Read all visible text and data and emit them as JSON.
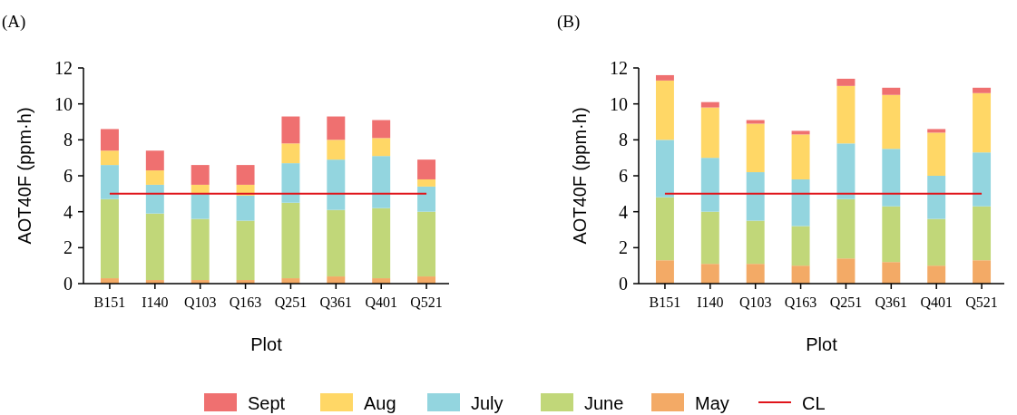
{
  "chart_data": [
    {
      "type": "bar",
      "title": "(A)",
      "xlabel": "Plot",
      "ylabel": "AOT40F (ppm·h)",
      "stacked": true,
      "legend": "bottom",
      "categories": [
        "B151",
        "I140",
        "Q103",
        "Q163",
        "Q251",
        "Q361",
        "Q401",
        "Q521"
      ],
      "ylim": [
        0,
        12
      ],
      "yticks": [
        0,
        2,
        4,
        6,
        8,
        10,
        12
      ],
      "series": [
        {
          "name": "May",
          "color": "#f3aa66",
          "values": [
            0.3,
            0.2,
            0.2,
            0.2,
            0.3,
            0.4,
            0.3,
            0.4
          ]
        },
        {
          "name": "June",
          "color": "#c1d779",
          "values": [
            4.4,
            3.7,
            3.4,
            3.3,
            4.2,
            3.7,
            3.9,
            3.6
          ]
        },
        {
          "name": "July",
          "color": "#93d5df",
          "values": [
            1.9,
            1.6,
            1.4,
            1.4,
            2.2,
            2.8,
            2.9,
            1.4
          ]
        },
        {
          "name": "Aug",
          "color": "#ffd766",
          "values": [
            0.8,
            0.8,
            0.5,
            0.6,
            1.1,
            1.1,
            1.0,
            0.4
          ]
        },
        {
          "name": "Sept",
          "color": "#ef7070",
          "values": [
            1.2,
            1.1,
            1.1,
            1.1,
            1.5,
            1.3,
            1.0,
            1.1
          ]
        }
      ],
      "ref_lines": [
        {
          "axis": "y",
          "value": 5,
          "label": "CL",
          "color": "#e0151b"
        }
      ]
    },
    {
      "type": "bar",
      "title": "(B)",
      "xlabel": "Plot",
      "ylabel": "AOT40F (ppm·h)",
      "stacked": true,
      "categories": [
        "B151",
        "I140",
        "Q103",
        "Q163",
        "Q251",
        "Q361",
        "Q401",
        "Q521"
      ],
      "ylim": [
        0,
        12
      ],
      "yticks": [
        0,
        2,
        4,
        6,
        8,
        10,
        12
      ],
      "series": [
        {
          "color": "#f3aa66",
          "values": [
            1.3,
            1.1,
            1.1,
            1.0,
            1.4,
            1.2,
            1.0,
            1.3
          ]
        },
        {
          "color": "#c1d779",
          "values": [
            3.5,
            2.9,
            2.4,
            2.2,
            3.3,
            3.1,
            2.6,
            3.0
          ]
        },
        {
          "color": "#93d5df",
          "values": [
            3.2,
            3.0,
            2.7,
            2.6,
            3.1,
            3.2,
            2.4,
            3.0
          ]
        },
        {
          "color": "#ffd766",
          "values": [
            3.3,
            2.8,
            2.7,
            2.5,
            3.2,
            3.0,
            2.4,
            3.3
          ]
        },
        {
          "color": "#ef7070",
          "values": [
            0.3,
            0.3,
            0.2,
            0.2,
            0.4,
            0.4,
            0.2,
            0.3
          ]
        }
      ],
      "ref_lines": [
        {
          "axis": "y",
          "value": 5,
          "color": "#e0151b"
        }
      ]
    }
  ]
}
